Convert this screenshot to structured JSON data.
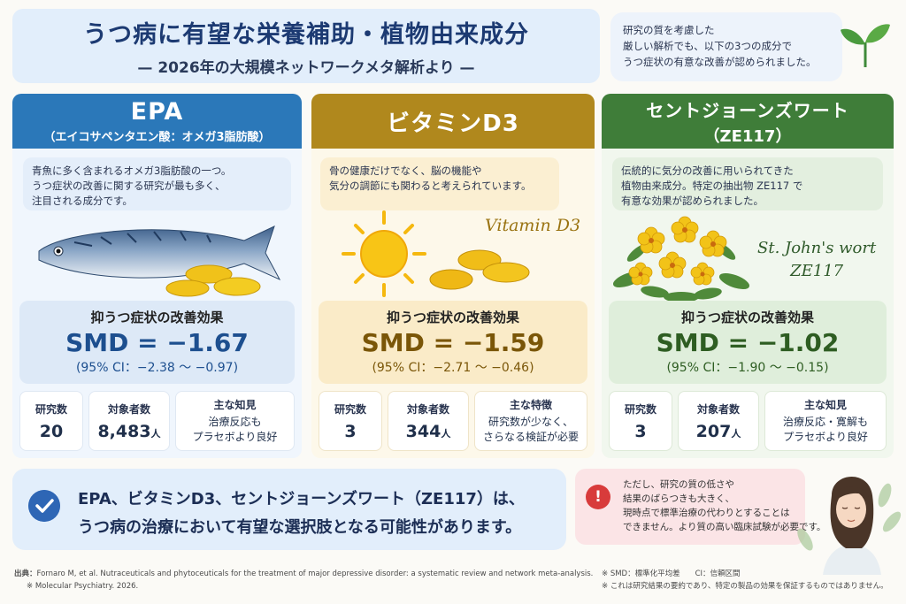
{
  "header": {
    "title": "うつ病に有望な栄養補助・植物由来成分",
    "subtitle": "— 2026年の大規模ネットワークメタ解析より —"
  },
  "intro": {
    "lines": [
      "研究の質を考慮した",
      "厳しい解析でも、以下の3つの成分で",
      "うつ症状の有意な改善が認められました。"
    ]
  },
  "columns": [
    {
      "name": "EPA",
      "subname": "（エイコサペンタエン酸：オメガ3脂肪酸）",
      "desc": [
        "青魚に多く含まれるオメガ3脂肪酸の一つ。",
        "うつ症状の改善に関する研究が最も多く、",
        "注目される成分です。"
      ],
      "effect_title": "抑うつ症状の改善効果",
      "smd": "SMD = −1.67",
      "ci": "(95% CI：−2.38 ～ −0.97)",
      "stat1_label": "研究数",
      "stat1_value": "20",
      "stat2_label": "対象者数",
      "stat2_value": "8,483",
      "stat2_unit": "人",
      "stat3_label": "主な知見",
      "stat3_lines": [
        "治療反応も",
        "プラセボより良好"
      ]
    },
    {
      "name": "ビタミンD3",
      "subname": "",
      "desc": [
        "骨の健康だけでなく、脳の機能や",
        "気分の調節にも関わると考えられています。"
      ],
      "illus_label": "Vitamin D3",
      "effect_title": "抑うつ症状の改善効果",
      "smd": "SMD = −1.59",
      "ci": "(95% CI：−2.71 ～ −0.46)",
      "stat1_label": "研究数",
      "stat1_value": "3",
      "stat2_label": "対象者数",
      "stat2_value": "344",
      "stat2_unit": "人",
      "stat3_label": "主な特徴",
      "stat3_lines": [
        "研究数が少なく、",
        "さらなる検証が必要"
      ]
    },
    {
      "name": "セントジョーンズワート",
      "subname": "（ZE117）",
      "desc": [
        "伝統的に気分の改善に用いられてきた",
        "植物由来成分。特定の抽出物 ZE117 で",
        "有意な効果が認められました。"
      ],
      "illus_label_1": "St. John's wort",
      "illus_label_2": "ZE117",
      "effect_title": "抑うつ症状の改善効果",
      "smd": "SMD = −1.02",
      "ci": "(95% CI：−1.90 ～ −0.15)",
      "stat1_label": "研究数",
      "stat1_value": "3",
      "stat2_label": "対象者数",
      "stat2_value": "207",
      "stat2_unit": "人",
      "stat3_label": "主な知見",
      "stat3_lines": [
        "治療反応・寛解も",
        "プラセボより良好"
      ]
    }
  ],
  "conclusion": {
    "line1": "EPA、ビタミンD3、セントジョーンズワート（ZE117）は、",
    "line2": "うつ病の治療において有望な選択肢となる可能性があります。"
  },
  "warning": {
    "lines": [
      "ただし、研究の質の低さや",
      "結果のばらつきも大きく、",
      "現時点で標準治療の代わりとすることは",
      "できません。より質の高い臨床試験が必要です。"
    ]
  },
  "source": {
    "label": "出典：",
    "line1": "Fornaro M, et al. Nutraceuticals and phytoceuticals for the treatment of major depressive disorder: a systematic review and network meta-analysis.",
    "line2": "※ Molecular Psychiatry. 2026."
  },
  "notes": {
    "line1": "※ SMD：標準化平均差　　CI：信頼区間",
    "line2": "※ これは研究結果の要約であり、特定の製品の効果を保証するものではありません。"
  },
  "colors": {
    "epa": "#2b78b9",
    "vitd": "#b0881d",
    "sjw": "#3f7d39",
    "title": "#1c3a72"
  }
}
